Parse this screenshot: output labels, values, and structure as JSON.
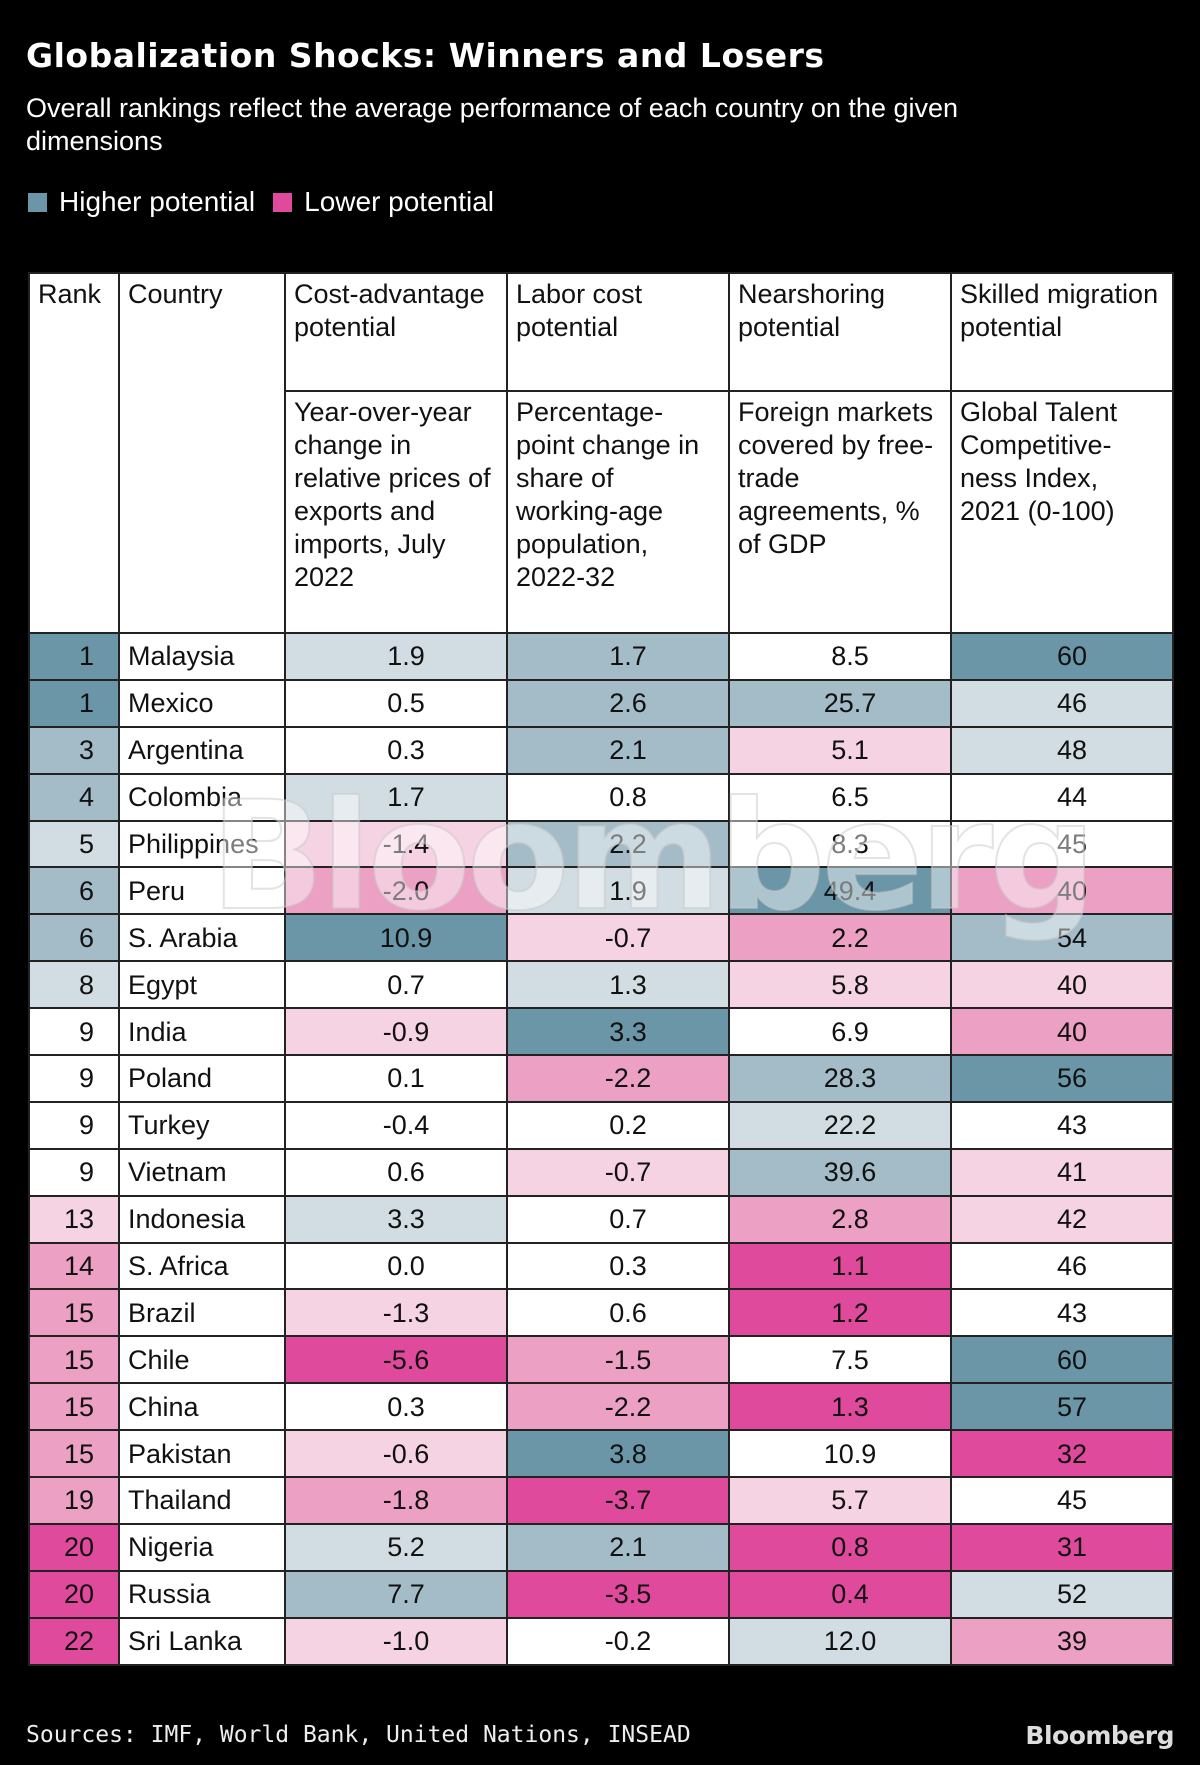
{
  "title": "Globalization Shocks: Winners and Losers",
  "subtitle": "Overall rankings reflect the average performance of each country on the given dimensions",
  "legend": [
    {
      "label": "Higher potential",
      "color": "#6a96a8"
    },
    {
      "label": "Lower potential",
      "color": "#e04a9c"
    }
  ],
  "colors": {
    "b3": "#6a96a8",
    "b2": "#a3bcc8",
    "b1": "#d2dde3",
    "w": "#ffffff",
    "p1": "#f6d3e3",
    "p2": "#eca0c4",
    "p3": "#e04a9c"
  },
  "chart_data": {
    "type": "table",
    "headers": [
      "Rank",
      "Country",
      "Cost-advantage potential",
      "Labor cost potential",
      "Nearshoring potential",
      "Skilled migration potential"
    ],
    "subheaders": [
      "",
      "",
      "Year-over-year change in relative prices of exports and imports, July 2022",
      "Percentage-point change in share of working-age population, 2022-32",
      "Foreign markets covered by free-trade agreements, % of GDP",
      "Global Talent Competitive-ness Index, 2021 (0-100)"
    ],
    "rows": [
      {
        "rank": "1",
        "rc": "b3",
        "country": "Malaysia",
        "cells": [
          [
            "1.9",
            "b1"
          ],
          [
            "1.7",
            "b2"
          ],
          [
            "8.5",
            "w"
          ],
          [
            "60",
            "b3"
          ]
        ]
      },
      {
        "rank": "1",
        "rc": "b3",
        "country": "Mexico",
        "cells": [
          [
            "0.5",
            "w"
          ],
          [
            "2.6",
            "b2"
          ],
          [
            "25.7",
            "b2"
          ],
          [
            "46",
            "b1"
          ]
        ]
      },
      {
        "rank": "3",
        "rc": "b2",
        "country": "Argentina",
        "cells": [
          [
            "0.3",
            "w"
          ],
          [
            "2.1",
            "b2"
          ],
          [
            "5.1",
            "p1"
          ],
          [
            "48",
            "b1"
          ]
        ]
      },
      {
        "rank": "4",
        "rc": "b2",
        "country": "Colombia",
        "cells": [
          [
            "1.7",
            "b1"
          ],
          [
            "0.8",
            "w"
          ],
          [
            "6.5",
            "w"
          ],
          [
            "44",
            "w"
          ]
        ]
      },
      {
        "rank": "5",
        "rc": "b1",
        "country": "Philippines",
        "cells": [
          [
            "-1.4",
            "p1"
          ],
          [
            "2.2",
            "b2"
          ],
          [
            "8.3",
            "w"
          ],
          [
            "45",
            "w"
          ]
        ]
      },
      {
        "rank": "6",
        "rc": "b2",
        "country": "Peru",
        "cells": [
          [
            "-2.0",
            "p2"
          ],
          [
            "1.9",
            "b1"
          ],
          [
            "49.4",
            "b3"
          ],
          [
            "40",
            "p2"
          ]
        ]
      },
      {
        "rank": "6",
        "rc": "b2",
        "country": "S. Arabia",
        "cells": [
          [
            "10.9",
            "b3"
          ],
          [
            "-0.7",
            "p1"
          ],
          [
            "2.2",
            "p2"
          ],
          [
            "54",
            "b2"
          ]
        ]
      },
      {
        "rank": "8",
        "rc": "b1",
        "country": "Egypt",
        "cells": [
          [
            "0.7",
            "w"
          ],
          [
            "1.3",
            "b1"
          ],
          [
            "5.8",
            "p1"
          ],
          [
            "40",
            "p1"
          ]
        ]
      },
      {
        "rank": "9",
        "rc": "w",
        "country": "India",
        "cells": [
          [
            "-0.9",
            "p1"
          ],
          [
            "3.3",
            "b3"
          ],
          [
            "6.9",
            "w"
          ],
          [
            "40",
            "p2"
          ]
        ]
      },
      {
        "rank": "9",
        "rc": "w",
        "country": "Poland",
        "cells": [
          [
            "0.1",
            "w"
          ],
          [
            "-2.2",
            "p2"
          ],
          [
            "28.3",
            "b2"
          ],
          [
            "56",
            "b3"
          ]
        ]
      },
      {
        "rank": "9",
        "rc": "w",
        "country": "Turkey",
        "cells": [
          [
            "-0.4",
            "w"
          ],
          [
            "0.2",
            "w"
          ],
          [
            "22.2",
            "b1"
          ],
          [
            "43",
            "w"
          ]
        ]
      },
      {
        "rank": "9",
        "rc": "w",
        "country": "Vietnam",
        "cells": [
          [
            "0.6",
            "w"
          ],
          [
            "-0.7",
            "p1"
          ],
          [
            "39.6",
            "b2"
          ],
          [
            "41",
            "p1"
          ]
        ]
      },
      {
        "rank": "13",
        "rc": "p1",
        "country": "Indonesia",
        "cells": [
          [
            "3.3",
            "b1"
          ],
          [
            "0.7",
            "w"
          ],
          [
            "2.8",
            "p2"
          ],
          [
            "42",
            "p1"
          ]
        ]
      },
      {
        "rank": "14",
        "rc": "p2",
        "country": "S. Africa",
        "cells": [
          [
            "0.0",
            "w"
          ],
          [
            "0.3",
            "w"
          ],
          [
            "1.1",
            "p3"
          ],
          [
            "46",
            "w"
          ]
        ]
      },
      {
        "rank": "15",
        "rc": "p2",
        "country": "Brazil",
        "cells": [
          [
            "-1.3",
            "p1"
          ],
          [
            "0.6",
            "w"
          ],
          [
            "1.2",
            "p3"
          ],
          [
            "43",
            "w"
          ]
        ]
      },
      {
        "rank": "15",
        "rc": "p2",
        "country": "Chile",
        "cells": [
          [
            "-5.6",
            "p3"
          ],
          [
            "-1.5",
            "p2"
          ],
          [
            "7.5",
            "w"
          ],
          [
            "60",
            "b3"
          ]
        ]
      },
      {
        "rank": "15",
        "rc": "p2",
        "country": "China",
        "cells": [
          [
            "0.3",
            "w"
          ],
          [
            "-2.2",
            "p2"
          ],
          [
            "1.3",
            "p3"
          ],
          [
            "57",
            "b3"
          ]
        ]
      },
      {
        "rank": "15",
        "rc": "p2",
        "country": "Pakistan",
        "cells": [
          [
            "-0.6",
            "p1"
          ],
          [
            "3.8",
            "b3"
          ],
          [
            "10.9",
            "w"
          ],
          [
            "32",
            "p3"
          ]
        ]
      },
      {
        "rank": "19",
        "rc": "p2",
        "country": "Thailand",
        "cells": [
          [
            "-1.8",
            "p2"
          ],
          [
            "-3.7",
            "p3"
          ],
          [
            "5.7",
            "p1"
          ],
          [
            "45",
            "w"
          ]
        ]
      },
      {
        "rank": "20",
        "rc": "p3",
        "country": "Nigeria",
        "cells": [
          [
            "5.2",
            "b1"
          ],
          [
            "2.1",
            "b2"
          ],
          [
            "0.8",
            "p3"
          ],
          [
            "31",
            "p3"
          ]
        ]
      },
      {
        "rank": "20",
        "rc": "p3",
        "country": "Russia",
        "cells": [
          [
            "7.7",
            "b2"
          ],
          [
            "-3.5",
            "p3"
          ],
          [
            "0.4",
            "p3"
          ],
          [
            "52",
            "b1"
          ]
        ]
      },
      {
        "rank": "22",
        "rc": "p3",
        "country": "Sri Lanka",
        "cells": [
          [
            "-1.0",
            "p1"
          ],
          [
            "-0.2",
            "w"
          ],
          [
            "12.0",
            "b1"
          ],
          [
            "39",
            "p2"
          ]
        ]
      }
    ]
  },
  "watermark": "Bloomberg",
  "sources": "Sources: IMF, World Bank, United Nations, INSEAD",
  "logo": "Bloomberg"
}
